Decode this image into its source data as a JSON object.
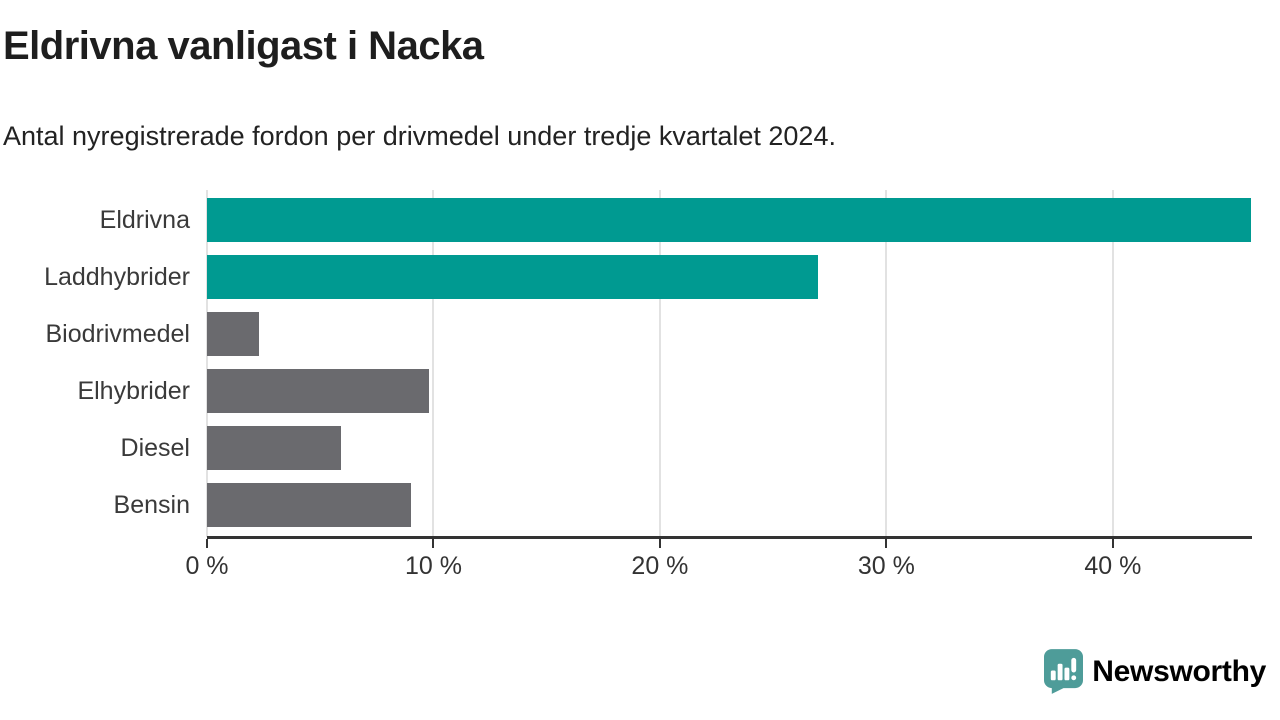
{
  "title": "Eldrivna vanligast i Nacka",
  "subtitle": "Antal nyregistrerade fordon per drivmedel under tredje kvartalet 2024.",
  "chart_data": {
    "type": "bar",
    "orientation": "horizontal",
    "title": "Eldrivna vanligast i Nacka",
    "subtitle": "Antal nyregistrerade fordon per drivmedel under tredje kvartalet 2024.",
    "categories": [
      "Eldrivna",
      "Laddhybrider",
      "Biodrivmedel",
      "Elhybrider",
      "Diesel",
      "Bensin"
    ],
    "values": [
      46.1,
      27.0,
      2.3,
      9.8,
      5.9,
      9.0
    ],
    "unit": "%",
    "bar_colors": [
      "#009A91",
      "#009A91",
      "#6A6A6E",
      "#6A6A6E",
      "#6A6A6E",
      "#6A6A6E"
    ],
    "highlight_color": "#009A91",
    "default_color": "#6A6A6E",
    "xlim": [
      0,
      46.1
    ],
    "x_ticks": [
      0,
      10,
      20,
      30,
      40
    ],
    "x_tick_labels": [
      "0 %",
      "10 %",
      "20 %",
      "30 %",
      "40 %"
    ],
    "grid": true,
    "gridline_color": "#e2e2e2",
    "axis_color": "#333333",
    "legend_position": "none"
  },
  "footer": {
    "brand": "Newsworthy",
    "brand_color": "#4E9C99",
    "logo_icon": "newsworthy-speech-bubble-chart-icon"
  }
}
